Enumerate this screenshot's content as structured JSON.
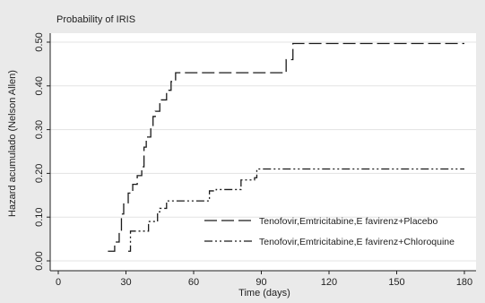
{
  "chart_data": {
    "type": "line",
    "title": "Probability of IRIS",
    "xlabel": "Time (days)",
    "ylabel": "Hazard acumulado (Nelson Allen)",
    "xlim": [
      0,
      180
    ],
    "ylim": [
      0,
      0.5
    ],
    "x_ticks": [
      0,
      30,
      60,
      90,
      120,
      150,
      180
    ],
    "y_ticks": [
      0.0,
      0.1,
      0.2,
      0.3,
      0.4,
      0.5
    ],
    "x_tick_labels": [
      "0",
      "30",
      "60",
      "90",
      "120",
      "150",
      "180"
    ],
    "y_tick_labels": [
      "0.00",
      "0.10",
      "0.20",
      "0.30",
      "0.40",
      "0.50"
    ],
    "grid": true,
    "legend_position": "bottom-right",
    "step": true,
    "series": [
      {
        "name": "Tenofovir,Emtricitabine,E favirenz+Placebo",
        "line_style": "long-dash",
        "color": "#1a1a1a",
        "x": [
          22,
          25,
          27,
          28,
          29,
          31,
          33,
          35,
          37,
          38,
          39,
          41,
          42,
          43,
          45,
          48,
          50,
          52,
          101,
          104,
          180
        ],
        "y": [
          0.022,
          0.043,
          0.065,
          0.107,
          0.13,
          0.155,
          0.175,
          0.195,
          0.215,
          0.26,
          0.283,
          0.306,
          0.33,
          0.342,
          0.368,
          0.39,
          0.41,
          0.43,
          0.46,
          0.497,
          0.497
        ]
      },
      {
        "name": "Tenofovir,Emtricitabine,E favirenz+Chloroquine",
        "line_style": "dash-dot-dot",
        "color": "#1a1a1a",
        "x": [
          31,
          32,
          40,
          44,
          45,
          48,
          67,
          70,
          81,
          87,
          88,
          180
        ],
        "y": [
          0.022,
          0.068,
          0.09,
          0.112,
          0.12,
          0.137,
          0.16,
          0.163,
          0.185,
          0.19,
          0.21,
          0.21
        ]
      }
    ]
  }
}
